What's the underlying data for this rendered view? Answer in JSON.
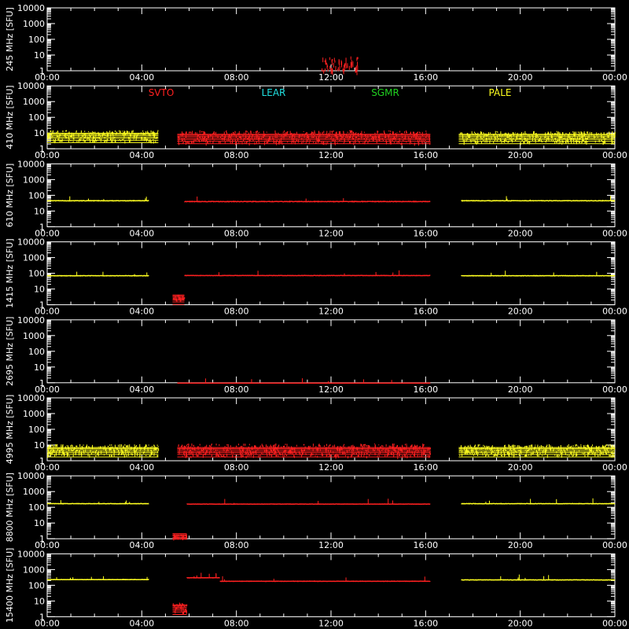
{
  "chart_data": {
    "type": "scatter",
    "background": "#000000",
    "frame_color": "#ffffff",
    "y_scale": "log",
    "ylim": [
      1,
      10000
    ],
    "xlim": [
      "00:00",
      "24:00"
    ],
    "x_tick_labels": [
      "00:00",
      "04:00",
      "08:00",
      "12:00",
      "16:00",
      "20:00",
      "00:00"
    ],
    "y_tick_labels": [
      "1",
      "10",
      "100",
      "1000",
      "10000"
    ],
    "legend": [
      {
        "name": "SVTO",
        "color": "#ff2020"
      },
      {
        "name": "LEAR",
        "color": "#20e0e0"
      },
      {
        "name": "SGMR",
        "color": "#20d020"
      },
      {
        "name": "PALE",
        "color": "#ffff20"
      }
    ],
    "panels": [
      {
        "label": "245 MHz [SFU]",
        "segments": [
          {
            "station": "SVTO",
            "start": 11.6,
            "end": 13.2,
            "level": 2,
            "noise": 0.45,
            "mode": "burst"
          }
        ]
      },
      {
        "label": "410 MHz [SFU]",
        "segments": [
          {
            "station": "PALE",
            "start": 0.0,
            "end": 4.7,
            "level": 7,
            "noise": 0.35,
            "mode": "band"
          },
          {
            "station": "SVTO",
            "start": 5.5,
            "end": 16.2,
            "level": 6,
            "noise": 0.4,
            "mode": "band"
          },
          {
            "station": "PALE",
            "start": 17.4,
            "end": 24.0,
            "level": 6,
            "noise": 0.35,
            "mode": "band"
          }
        ]
      },
      {
        "label": "610 MHz [SFU]",
        "segments": [
          {
            "station": "PALE",
            "start": 0.0,
            "end": 4.3,
            "level": 45,
            "noise": 0.04,
            "mode": "line"
          },
          {
            "station": "SVTO",
            "start": 5.8,
            "end": 16.2,
            "level": 40,
            "noise": 0.05,
            "mode": "line"
          },
          {
            "station": "PALE",
            "start": 17.5,
            "end": 24.0,
            "level": 45,
            "noise": 0.04,
            "mode": "line"
          }
        ]
      },
      {
        "label": "1415 MHz [SFU]",
        "segments": [
          {
            "station": "PALE",
            "start": 0.0,
            "end": 4.3,
            "level": 70,
            "noise": 0.04,
            "mode": "line"
          },
          {
            "station": "SVTO",
            "start": 5.3,
            "end": 5.8,
            "level": 3,
            "noise": 0.15,
            "mode": "band"
          },
          {
            "station": "SVTO",
            "start": 5.8,
            "end": 16.2,
            "level": 72,
            "noise": 0.03,
            "mode": "line"
          },
          {
            "station": "PALE",
            "start": 17.5,
            "end": 24.0,
            "level": 70,
            "noise": 0.04,
            "mode": "line"
          }
        ]
      },
      {
        "label": "2695 MHz [SFU]",
        "segments": [
          {
            "station": "SVTO",
            "start": 5.5,
            "end": 16.2,
            "level": 0.9,
            "noise": 0.0,
            "mode": "line"
          }
        ]
      },
      {
        "label": "4995 MHz [SFU]",
        "segments": [
          {
            "station": "PALE",
            "start": 0.0,
            "end": 4.7,
            "level": 5,
            "noise": 0.35,
            "mode": "band"
          },
          {
            "station": "SVTO",
            "start": 5.5,
            "end": 16.2,
            "level": 5,
            "noise": 0.4,
            "mode": "band"
          },
          {
            "station": "PALE",
            "start": 17.4,
            "end": 24.0,
            "level": 5,
            "noise": 0.35,
            "mode": "band"
          }
        ]
      },
      {
        "label": "8800 MHz [SFU]",
        "segments": [
          {
            "station": "PALE",
            "start": 0.0,
            "end": 4.3,
            "level": 170,
            "noise": 0.03,
            "mode": "line"
          },
          {
            "station": "SVTO",
            "start": 5.3,
            "end": 5.9,
            "level": 1.5,
            "noise": 0.12,
            "mode": "band"
          },
          {
            "station": "SVTO",
            "start": 5.9,
            "end": 16.2,
            "level": 160,
            "noise": 0.02,
            "mode": "line"
          },
          {
            "station": "PALE",
            "start": 17.5,
            "end": 24.0,
            "level": 170,
            "noise": 0.03,
            "mode": "line"
          }
        ]
      },
      {
        "label": "15400 MHz [SFU]",
        "segments": [
          {
            "station": "PALE",
            "start": 0.0,
            "end": 4.3,
            "level": 230,
            "noise": 0.03,
            "mode": "line"
          },
          {
            "station": "SVTO",
            "start": 5.3,
            "end": 5.9,
            "level": 4,
            "noise": 0.3,
            "mode": "band"
          },
          {
            "station": "SVTO",
            "start": 5.9,
            "end": 7.3,
            "level": 300,
            "noise": 0.03,
            "mode": "line"
          },
          {
            "station": "SVTO",
            "start": 7.3,
            "end": 16.2,
            "level": 180,
            "noise": 0.03,
            "mode": "line"
          },
          {
            "station": "PALE",
            "start": 17.5,
            "end": 24.0,
            "level": 220,
            "noise": 0.03,
            "mode": "line"
          }
        ]
      }
    ]
  }
}
